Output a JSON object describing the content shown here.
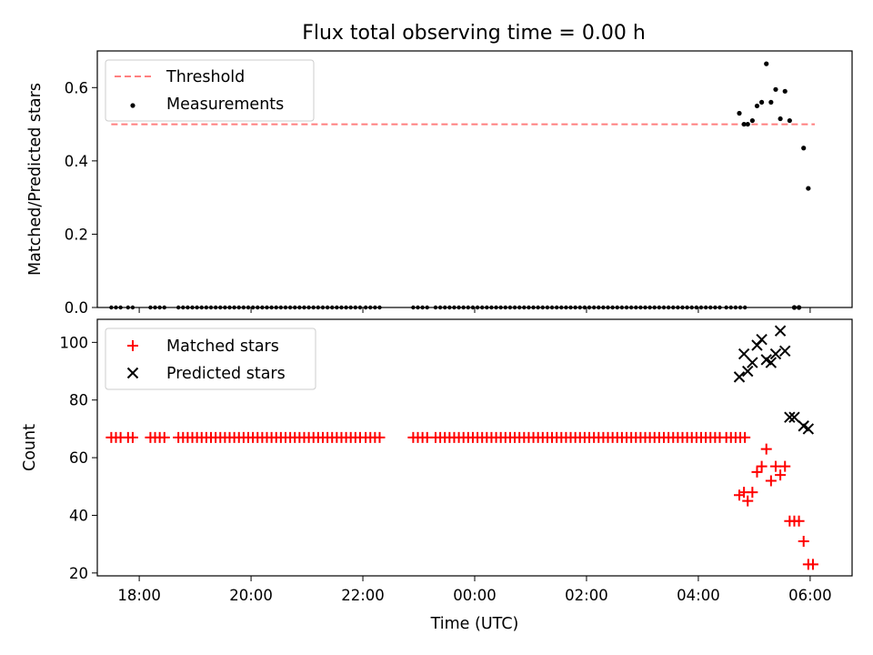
{
  "title": "Flux total observing time = 0.00 h",
  "colors": {
    "threshold": "#ff7f7f",
    "measurement": "#000000",
    "matched": "#ff0000",
    "predicted": "#000000"
  },
  "chart_data": [
    {
      "type": "scatter",
      "ylabel": "Matched/Predicted stars",
      "ylim": [
        0,
        0.7
      ],
      "yticks": [
        "0.0",
        "0.2",
        "0.4",
        "0.6"
      ],
      "grid": false,
      "legend_position": "top-left",
      "series": [
        {
          "name": "Threshold",
          "style": "dashed-line",
          "x": [
            "17:30",
            "06:05"
          ],
          "y": [
            0.5,
            0.5
          ]
        },
        {
          "name": "Measurements",
          "style": "points",
          "x": [
            "04:44",
            "04:49",
            "04:53",
            "04:58",
            "05:03",
            "05:08",
            "05:13",
            "05:18",
            "05:23",
            "05:28",
            "05:33",
            "05:38",
            "05:43",
            "05:48",
            "05:53",
            "05:58"
          ],
          "y": [
            0.53,
            0.5,
            0.5,
            0.51,
            0.55,
            0.56,
            0.665,
            0.56,
            0.595,
            0.515,
            0.59,
            0.51,
            0.0,
            0.0,
            0.435,
            0.325
          ]
        }
      ]
    },
    {
      "type": "scatter",
      "xlabel": "Time (UTC)",
      "ylabel": "Count",
      "ylim": [
        19,
        108
      ],
      "yticks": [
        "20",
        "40",
        "60",
        "80",
        "100"
      ],
      "xticks": [
        "18:00",
        "20:00",
        "22:00",
        "00:00",
        "02:00",
        "04:00",
        "06:00"
      ],
      "grid": false,
      "legend_position": "top-left",
      "series": [
        {
          "name": "Matched stars",
          "marker": "+",
          "x": [
            "04:44",
            "04:49",
            "04:53",
            "04:58",
            "05:03",
            "05:08",
            "05:13",
            "05:18",
            "05:23",
            "05:28",
            "05:33",
            "05:38",
            "05:43",
            "05:48",
            "05:53",
            "05:58",
            "06:03"
          ],
          "y": [
            47,
            48,
            45,
            48,
            55,
            57,
            63,
            52,
            57,
            54,
            57,
            38,
            38,
            38,
            31,
            23,
            23
          ]
        },
        {
          "name": "Predicted stars",
          "marker": "x",
          "x": [
            "04:44",
            "04:49",
            "04:53",
            "04:58",
            "05:03",
            "05:08",
            "05:13",
            "05:18",
            "05:23",
            "05:28",
            "05:33",
            "05:38",
            "05:43",
            "05:53",
            "05:58"
          ],
          "y": [
            88,
            96,
            90,
            93,
            99,
            101,
            94,
            93,
            96,
            104,
            97,
            74,
            74,
            71,
            70
          ]
        }
      ]
    }
  ]
}
